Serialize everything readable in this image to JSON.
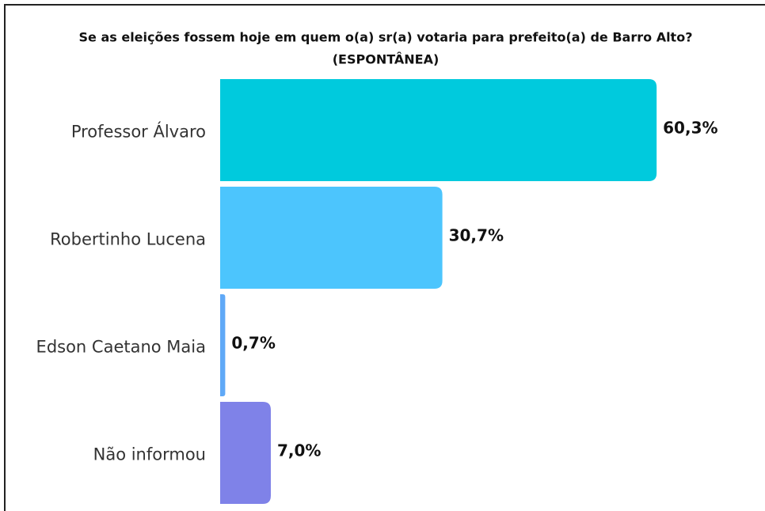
{
  "chart_data": {
    "type": "hbar",
    "title": "Se as eleições fossem hoje em quem o(a) sr(a) votaria para prefeito(a) de Barro Alto?",
    "subtitle": "(ESPONTÂNEA)",
    "categories": [
      "Professor Álvaro",
      "Robertinho Lucena",
      "Edson Caetano Maia",
      "Não informou"
    ],
    "values": [
      60.3,
      30.7,
      0.7,
      7.0
    ],
    "value_labels": [
      "60,3%",
      "30,7%",
      "0,7%",
      "7,0%"
    ],
    "colors": [
      "#00cadd",
      "#4cc5fd",
      "#5fa9f7",
      "#7f82e8"
    ]
  }
}
